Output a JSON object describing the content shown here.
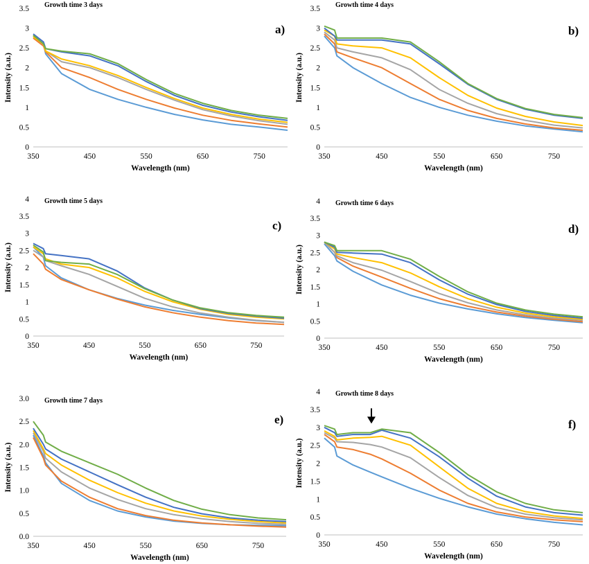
{
  "colors": {
    "series": [
      "#5b9bd5",
      "#ed7d31",
      "#a5a5a5",
      "#ffc000",
      "#4472c4",
      "#70ad47"
    ],
    "axis": "#bfbfbf",
    "arrow": "#000000"
  },
  "chart_data": [
    {
      "type": "line",
      "title": "Growth time 3 days",
      "panel_label": "a)",
      "xlabel": "Wavelength (nm)",
      "ylabel": "Intensity (a.u.)",
      "xlim": [
        350,
        800
      ],
      "ylim": [
        0,
        3.5
      ],
      "xticks": [
        "350",
        "450",
        "550",
        "650",
        "750"
      ],
      "yticks": [
        "0",
        "0.5",
        "1",
        "1.5",
        "2",
        "2.5",
        "3",
        "3.5"
      ],
      "grid": false,
      "x": [
        350,
        368,
        372,
        400,
        450,
        500,
        550,
        600,
        650,
        700,
        750,
        800
      ],
      "series": [
        {
          "values": [
            2.78,
            2.6,
            2.35,
            1.85,
            1.45,
            1.2,
            1.0,
            0.82,
            0.68,
            0.57,
            0.5,
            0.42
          ]
        },
        {
          "values": [
            2.75,
            2.55,
            2.4,
            2.0,
            1.75,
            1.45,
            1.2,
            0.98,
            0.8,
            0.67,
            0.58,
            0.5
          ]
        },
        {
          "values": [
            2.8,
            2.6,
            2.42,
            2.15,
            2.0,
            1.75,
            1.45,
            1.18,
            0.94,
            0.78,
            0.66,
            0.57
          ]
        },
        {
          "values": [
            2.78,
            2.6,
            2.42,
            2.22,
            2.05,
            1.8,
            1.5,
            1.22,
            0.98,
            0.82,
            0.7,
            0.62
          ]
        },
        {
          "values": [
            2.85,
            2.65,
            2.48,
            2.4,
            2.3,
            2.05,
            1.65,
            1.3,
            1.05,
            0.88,
            0.76,
            0.67
          ]
        },
        {
          "values": [
            2.82,
            2.6,
            2.48,
            2.42,
            2.35,
            2.1,
            1.7,
            1.35,
            1.1,
            0.92,
            0.8,
            0.72
          ]
        }
      ]
    },
    {
      "type": "line",
      "title": "Growth time 4 days",
      "panel_label": "b)",
      "xlabel": "Wavelength (nm)",
      "ylabel": "Intensity (a.u.)",
      "xlim": [
        350,
        800
      ],
      "ylim": [
        0,
        3.5
      ],
      "xticks": [
        "350",
        "450",
        "550",
        "650",
        "750"
      ],
      "yticks": [
        "0",
        "0.5",
        "1",
        "1.5",
        "2",
        "2.5",
        "3",
        "3.5"
      ],
      "grid": false,
      "x": [
        350,
        368,
        372,
        400,
        450,
        500,
        550,
        600,
        650,
        700,
        750,
        800
      ],
      "series": [
        {
          "values": [
            2.8,
            2.5,
            2.3,
            2.0,
            1.6,
            1.25,
            1.0,
            0.8,
            0.65,
            0.53,
            0.45,
            0.38
          ]
        },
        {
          "values": [
            2.85,
            2.6,
            2.4,
            2.25,
            2.0,
            1.6,
            1.2,
            0.92,
            0.72,
            0.58,
            0.48,
            0.42
          ]
        },
        {
          "values": [
            2.9,
            2.7,
            2.5,
            2.4,
            2.25,
            1.95,
            1.45,
            1.1,
            0.84,
            0.67,
            0.55,
            0.48
          ]
        },
        {
          "values": [
            2.95,
            2.8,
            2.6,
            2.55,
            2.5,
            2.25,
            1.75,
            1.3,
            0.98,
            0.77,
            0.63,
            0.54
          ]
        },
        {
          "values": [
            3.0,
            2.8,
            2.7,
            2.7,
            2.7,
            2.6,
            2.1,
            1.58,
            1.2,
            0.95,
            0.8,
            0.72
          ]
        },
        {
          "values": [
            3.05,
            2.95,
            2.75,
            2.75,
            2.75,
            2.65,
            2.15,
            1.6,
            1.22,
            0.97,
            0.82,
            0.74
          ]
        }
      ]
    },
    {
      "type": "line",
      "title": "Growth time 5 days",
      "panel_label": "c)",
      "xlabel": "Wavelength (nm)",
      "ylabel": "Intensity (a.u.)",
      "xlim": [
        350,
        800
      ],
      "ylim": [
        0,
        4
      ],
      "xticks": [
        "350",
        "450",
        "550",
        "650",
        "750"
      ],
      "yticks": [
        "0",
        "0.5",
        "1",
        "1.5",
        "2",
        "2.5",
        "3",
        "3.5",
        "4"
      ],
      "grid": false,
      "x": [
        350,
        368,
        372,
        400,
        450,
        500,
        550,
        600,
        650,
        700,
        750,
        800
      ],
      "series": [
        {
          "values": [
            2.6,
            2.3,
            2.05,
            1.7,
            1.35,
            1.1,
            0.9,
            0.75,
            0.63,
            0.53,
            0.45,
            0.4
          ]
        },
        {
          "values": [
            2.4,
            2.1,
            1.95,
            1.65,
            1.35,
            1.08,
            0.85,
            0.68,
            0.55,
            0.45,
            0.38,
            0.34
          ]
        },
        {
          "values": [
            2.5,
            2.3,
            2.2,
            2.05,
            1.8,
            1.45,
            1.1,
            0.85,
            0.67,
            0.55,
            0.46,
            0.4
          ]
        },
        {
          "values": [
            2.6,
            2.4,
            2.25,
            2.1,
            2.0,
            1.7,
            1.3,
            1.0,
            0.78,
            0.63,
            0.55,
            0.5
          ]
        },
        {
          "values": [
            2.7,
            2.55,
            2.4,
            2.35,
            2.25,
            1.9,
            1.4,
            1.05,
            0.8,
            0.66,
            0.58,
            0.52
          ]
        },
        {
          "values": [
            2.65,
            2.45,
            2.2,
            2.15,
            2.1,
            1.8,
            1.38,
            1.05,
            0.82,
            0.68,
            0.6,
            0.55
          ]
        }
      ]
    },
    {
      "type": "line",
      "title": "Growth time 6 days",
      "panel_label": "d)",
      "xlabel": "Wavelength  (nm)",
      "ylabel": "Intensity (a.u.)",
      "xlim": [
        350,
        800
      ],
      "ylim": [
        0,
        4
      ],
      "xticks": [
        "350",
        "450",
        "550",
        "650",
        "750"
      ],
      "yticks": [
        "0",
        "0.5",
        "1",
        "1.5",
        "2",
        "2.5",
        "3",
        "3.5",
        "4"
      ],
      "grid": false,
      "x": [
        350,
        368,
        372,
        400,
        450,
        500,
        550,
        600,
        650,
        700,
        750,
        800
      ],
      "series": [
        {
          "values": [
            2.75,
            2.4,
            2.25,
            1.95,
            1.55,
            1.25,
            1.02,
            0.85,
            0.71,
            0.6,
            0.52,
            0.45
          ]
        },
        {
          "values": [
            2.8,
            2.5,
            2.35,
            2.1,
            1.78,
            1.45,
            1.15,
            0.93,
            0.76,
            0.64,
            0.55,
            0.48
          ]
        },
        {
          "values": [
            2.8,
            2.5,
            2.4,
            2.2,
            1.98,
            1.65,
            1.3,
            1.03,
            0.82,
            0.68,
            0.58,
            0.52
          ]
        },
        {
          "values": [
            2.8,
            2.6,
            2.45,
            2.35,
            2.2,
            1.9,
            1.5,
            1.15,
            0.9,
            0.73,
            0.62,
            0.55
          ]
        },
        {
          "values": [
            2.8,
            2.65,
            2.5,
            2.48,
            2.45,
            2.2,
            1.7,
            1.28,
            0.98,
            0.78,
            0.66,
            0.58
          ]
        },
        {
          "values": [
            2.8,
            2.7,
            2.55,
            2.55,
            2.55,
            2.3,
            1.8,
            1.35,
            1.02,
            0.82,
            0.7,
            0.62
          ]
        }
      ]
    },
    {
      "type": "line",
      "title": "Growth time 7 days",
      "panel_label": "e)",
      "xlabel": "Wavelength (nm)",
      "ylabel": "Intensity (a.u.)",
      "xlim": [
        350,
        800
      ],
      "ylim": [
        0,
        3.0
      ],
      "xticks": [
        "350",
        "450",
        "550",
        "650",
        "750"
      ],
      "yticks": [
        "0.0",
        "0.5",
        "1.0",
        "1.5",
        "2.0",
        "2.5",
        "3.0"
      ],
      "grid": false,
      "x": [
        350,
        368,
        372,
        400,
        450,
        500,
        550,
        600,
        650,
        700,
        750,
        800
      ],
      "series": [
        {
          "values": [
            2.2,
            1.75,
            1.6,
            1.15,
            0.78,
            0.55,
            0.42,
            0.33,
            0.28,
            0.25,
            0.24,
            0.23
          ]
        },
        {
          "values": [
            2.15,
            1.7,
            1.55,
            1.2,
            0.85,
            0.6,
            0.45,
            0.35,
            0.29,
            0.25,
            0.22,
            0.2
          ]
        },
        {
          "values": [
            2.25,
            1.85,
            1.7,
            1.4,
            1.05,
            0.8,
            0.6,
            0.47,
            0.38,
            0.32,
            0.28,
            0.26
          ]
        },
        {
          "values": [
            2.3,
            1.9,
            1.8,
            1.55,
            1.22,
            0.95,
            0.72,
            0.55,
            0.44,
            0.37,
            0.32,
            0.29
          ]
        },
        {
          "values": [
            2.35,
            2.0,
            1.9,
            1.68,
            1.4,
            1.12,
            0.85,
            0.63,
            0.49,
            0.4,
            0.35,
            0.32
          ]
        },
        {
          "values": [
            2.5,
            2.2,
            2.05,
            1.85,
            1.6,
            1.35,
            1.05,
            0.78,
            0.59,
            0.47,
            0.4,
            0.36
          ]
        }
      ]
    },
    {
      "type": "line",
      "title": "Growth time 8 days",
      "panel_label": "f)",
      "xlabel": "Wavelength (nm)",
      "ylabel": "Intensity (a.u.)",
      "xlim": [
        350,
        800
      ],
      "ylim": [
        0,
        4
      ],
      "xticks": [
        "350",
        "450",
        "550",
        "650",
        "750"
      ],
      "yticks": [
        "0",
        "0.5",
        "1",
        "1.5",
        "2",
        "2.5",
        "3",
        "3.5",
        "4"
      ],
      "grid": false,
      "annotation": {
        "type": "arrow",
        "x": 432,
        "y": 2.95
      },
      "x": [
        350,
        368,
        372,
        400,
        430,
        450,
        500,
        550,
        600,
        650,
        700,
        750,
        800
      ],
      "series": [
        {
          "values": [
            2.7,
            2.45,
            2.2,
            1.95,
            1.75,
            1.62,
            1.3,
            1.02,
            0.78,
            0.58,
            0.45,
            0.35,
            0.28
          ]
        },
        {
          "values": [
            2.8,
            2.6,
            2.45,
            2.38,
            2.25,
            2.12,
            1.72,
            1.25,
            0.88,
            0.64,
            0.5,
            0.42,
            0.37
          ]
        },
        {
          "values": [
            2.85,
            2.7,
            2.6,
            2.58,
            2.52,
            2.45,
            2.15,
            1.6,
            1.1,
            0.76,
            0.58,
            0.48,
            0.42
          ]
        },
        {
          "values": [
            2.9,
            2.75,
            2.65,
            2.7,
            2.72,
            2.75,
            2.5,
            1.9,
            1.3,
            0.88,
            0.65,
            0.53,
            0.46
          ]
        },
        {
          "values": [
            3.0,
            2.85,
            2.75,
            2.8,
            2.8,
            2.92,
            2.7,
            2.18,
            1.58,
            1.08,
            0.78,
            0.62,
            0.55
          ]
        },
        {
          "values": [
            3.05,
            2.95,
            2.8,
            2.85,
            2.85,
            2.95,
            2.85,
            2.3,
            1.68,
            1.2,
            0.88,
            0.7,
            0.62
          ]
        }
      ]
    }
  ]
}
